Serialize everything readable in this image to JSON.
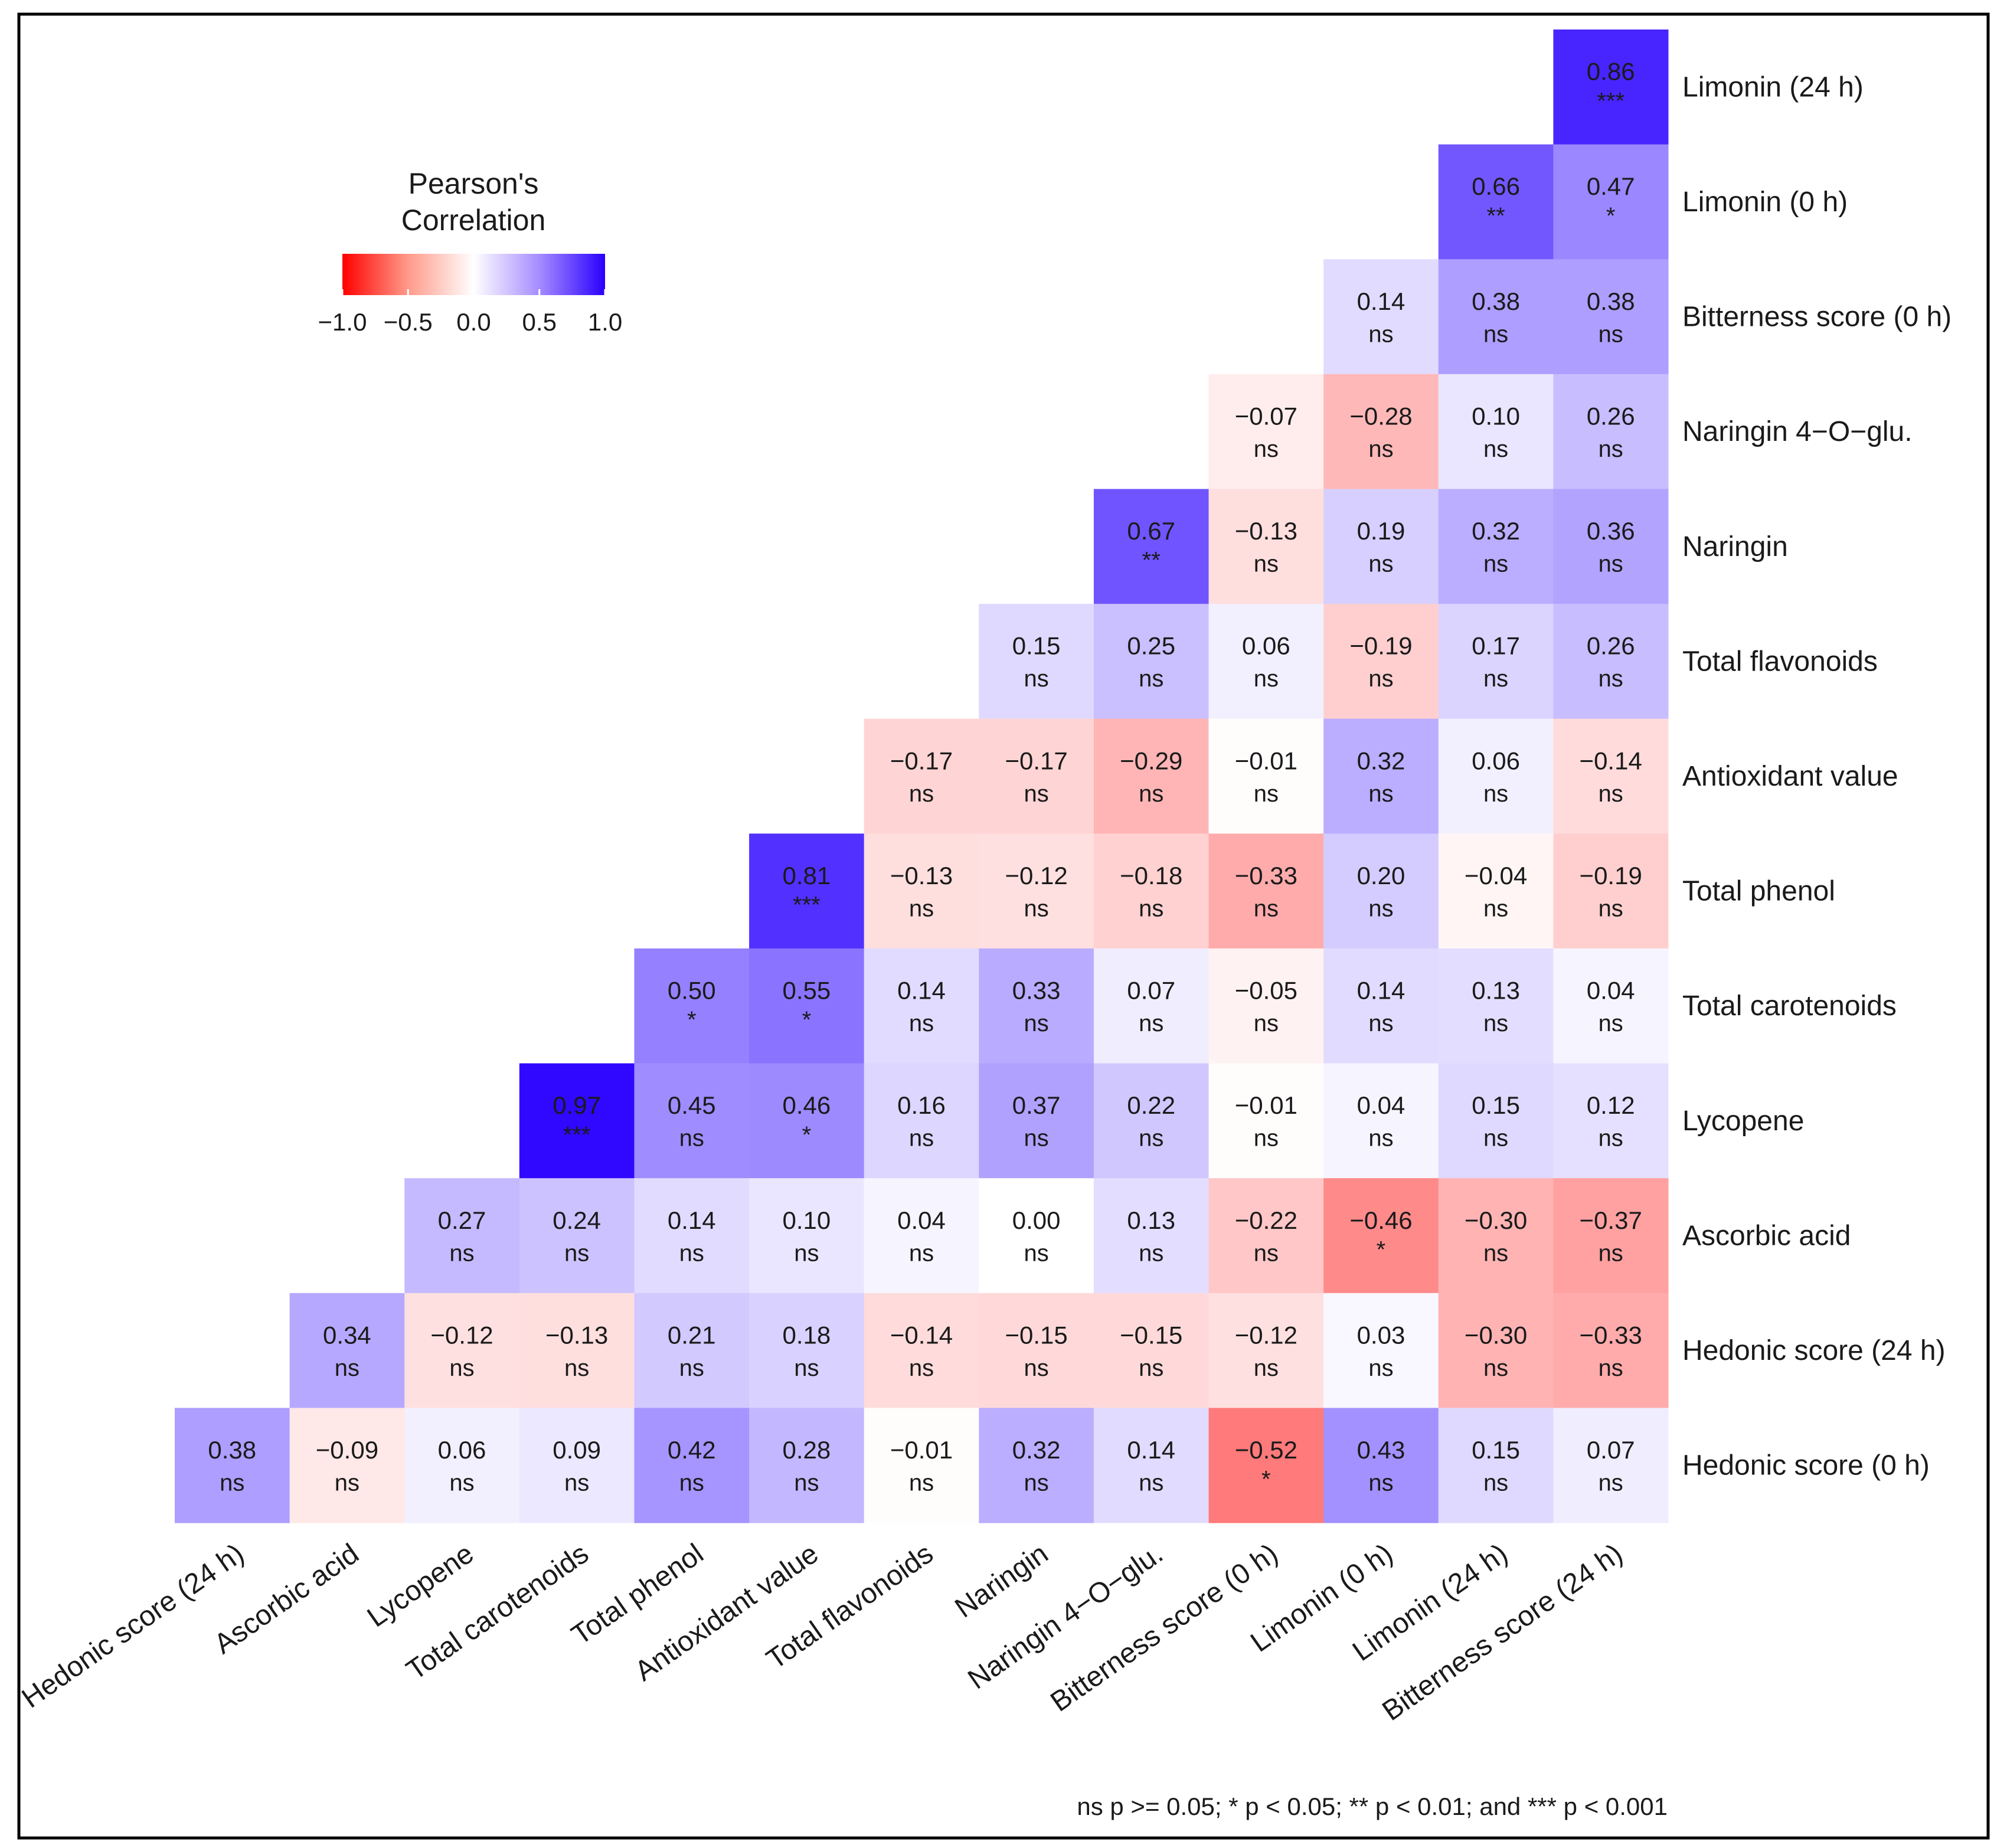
{
  "chart_data": {
    "type": "heatmap",
    "title": "",
    "legend": {
      "title_lines": [
        "Pearson's",
        "Correlation"
      ],
      "ticks": [
        "−1.0",
        "−0.5",
        "0.0",
        "0.5",
        "1.0"
      ],
      "tick_values": [
        -1.0,
        -0.5,
        0.0,
        0.5,
        1.0
      ],
      "range": [
        -1,
        1
      ],
      "colors": {
        "negative": "#ff0000",
        "zero": "#ffffff",
        "positive": "#2a00ff"
      },
      "position": "top-left"
    },
    "row_labels": [
      "Limonin (24 h)",
      "Limonin (0 h)",
      "Bitterness score (0 h)",
      "Naringin 4−O−glu.",
      "Naringin",
      "Total flavonoids",
      "Antioxidant value",
      "Total phenol",
      "Total carotenoids",
      "Lycopene",
      "Ascorbic acid",
      "Hedonic score (24 h)",
      "Hedonic score (0 h)"
    ],
    "col_labels": [
      "Hedonic score (24 h)",
      "Ascorbic acid",
      "Lycopene",
      "Total carotenoids",
      "Total phenol",
      "Antioxidant value",
      "Total flavonoids",
      "Naringin",
      "Naringin 4−O−glu.",
      "Bitterness score (0 h)",
      "Limonin (0 h)",
      "Limonin (24 h)",
      "Bitterness score (24 h)"
    ],
    "rows": [
      {
        "values": [
          0.86
        ],
        "labels": [
          "0.86"
        ],
        "sig": [
          "***"
        ]
      },
      {
        "values": [
          0.66,
          0.47
        ],
        "labels": [
          "0.66",
          "0.47"
        ],
        "sig": [
          "**",
          "*"
        ]
      },
      {
        "values": [
          0.14,
          0.38,
          0.38
        ],
        "labels": [
          "0.14",
          "0.38",
          "0.38"
        ],
        "sig": [
          "ns",
          "ns",
          "ns"
        ]
      },
      {
        "values": [
          -0.07,
          -0.28,
          0.1,
          0.26
        ],
        "labels": [
          "−0.07",
          "−0.28",
          "0.10",
          "0.26"
        ],
        "sig": [
          "ns",
          "ns",
          "ns",
          "ns"
        ]
      },
      {
        "values": [
          0.67,
          -0.13,
          0.19,
          0.32,
          0.36
        ],
        "labels": [
          "0.67",
          "−0.13",
          "0.19",
          "0.32",
          "0.36"
        ],
        "sig": [
          "**",
          "ns",
          "ns",
          "ns",
          "ns"
        ]
      },
      {
        "values": [
          0.15,
          0.25,
          0.06,
          -0.19,
          0.17,
          0.26
        ],
        "labels": [
          "0.15",
          "0.25",
          "0.06",
          "−0.19",
          "0.17",
          "0.26"
        ],
        "sig": [
          "ns",
          "ns",
          "ns",
          "ns",
          "ns",
          "ns"
        ]
      },
      {
        "values": [
          -0.17,
          -0.17,
          -0.29,
          -0.01,
          0.32,
          0.06,
          -0.14
        ],
        "labels": [
          "−0.17",
          "−0.17",
          "−0.29",
          "−0.01",
          "0.32",
          "0.06",
          "−0.14"
        ],
        "sig": [
          "ns",
          "ns",
          "ns",
          "ns",
          "ns",
          "ns",
          "ns"
        ]
      },
      {
        "values": [
          0.81,
          -0.13,
          -0.12,
          -0.18,
          -0.33,
          0.2,
          -0.04,
          -0.19
        ],
        "labels": [
          "0.81",
          "−0.13",
          "−0.12",
          "−0.18",
          "−0.33",
          "0.20",
          "−0.04",
          "−0.19"
        ],
        "sig": [
          "***",
          "ns",
          "ns",
          "ns",
          "ns",
          "ns",
          "ns",
          "ns"
        ]
      },
      {
        "values": [
          0.5,
          0.55,
          0.14,
          0.33,
          0.07,
          -0.05,
          0.14,
          0.13,
          0.04
        ],
        "labels": [
          "0.50",
          "0.55",
          "0.14",
          "0.33",
          "0.07",
          "−0.05",
          "0.14",
          "0.13",
          "0.04"
        ],
        "sig": [
          "*",
          "*",
          "ns",
          "ns",
          "ns",
          "ns",
          "ns",
          "ns",
          "ns"
        ]
      },
      {
        "values": [
          0.97,
          0.45,
          0.46,
          0.16,
          0.37,
          0.22,
          -0.01,
          0.04,
          0.15,
          0.12
        ],
        "labels": [
          "0.97",
          "0.45",
          "0.46",
          "0.16",
          "0.37",
          "0.22",
          "−0.01",
          "0.04",
          "0.15",
          "0.12"
        ],
        "sig": [
          "***",
          "ns",
          "*",
          "ns",
          "ns",
          "ns",
          "ns",
          "ns",
          "ns",
          "ns"
        ]
      },
      {
        "values": [
          0.27,
          0.24,
          0.14,
          0.1,
          0.04,
          0.0,
          0.13,
          -0.22,
          -0.46,
          -0.3,
          -0.37
        ],
        "labels": [
          "0.27",
          "0.24",
          "0.14",
          "0.10",
          "0.04",
          "0.00",
          "0.13",
          "−0.22",
          "−0.46",
          "−0.30",
          "−0.37"
        ],
        "sig": [
          "ns",
          "ns",
          "ns",
          "ns",
          "ns",
          "ns",
          "ns",
          "ns",
          "*",
          "ns",
          "ns"
        ]
      },
      {
        "values": [
          0.34,
          -0.12,
          -0.13,
          0.21,
          0.18,
          -0.14,
          -0.15,
          -0.15,
          -0.12,
          0.03,
          -0.3,
          -0.33
        ],
        "labels": [
          "0.34",
          "−0.12",
          "−0.13",
          "0.21",
          "0.18",
          "−0.14",
          "−0.15",
          "−0.15",
          "−0.12",
          "0.03",
          "−0.30",
          "−0.33"
        ],
        "sig": [
          "ns",
          "ns",
          "ns",
          "ns",
          "ns",
          "ns",
          "ns",
          "ns",
          "ns",
          "ns",
          "ns",
          "ns"
        ]
      },
      {
        "values": [
          0.38,
          -0.09,
          0.06,
          0.09,
          0.42,
          0.28,
          -0.01,
          0.32,
          0.14,
          -0.52,
          0.43,
          0.15,
          0.07
        ],
        "labels": [
          "0.38",
          "−0.09",
          "0.06",
          "0.09",
          "0.42",
          "0.28",
          "−0.01",
          "0.32",
          "0.14",
          "−0.52",
          "0.43",
          "0.15",
          "0.07"
        ],
        "sig": [
          "ns",
          "ns",
          "ns",
          "ns",
          "ns",
          "ns",
          "ns",
          "ns",
          "ns",
          "*",
          "ns",
          "ns",
          "ns"
        ]
      }
    ],
    "footnote": "ns p >= 0.05; * p < 0.05; ** p < 0.01; and *** p < 0.001"
  }
}
